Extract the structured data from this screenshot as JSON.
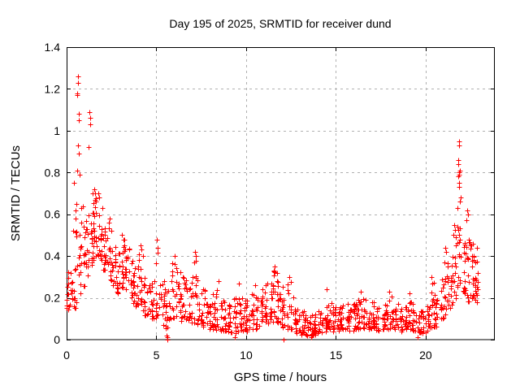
{
  "window": {
    "background": "#ffffff"
  },
  "colors": {
    "marker": "#ff0000",
    "grid": "#b0b0b0",
    "axis": "#000000",
    "text": "#000000",
    "background": "#ffffff"
  },
  "chart_data": {
    "type": "scatter",
    "title": "Day 195 of 2025, SRMTID for receiver dund",
    "xlabel": "GPS time / hours",
    "ylabel": "SRMTID / TECUs",
    "xlim": [
      0,
      23.85
    ],
    "ylim": [
      0,
      1.4
    ],
    "xticks": [
      0,
      5,
      10,
      15,
      20
    ],
    "xtick_labels": [
      "0",
      "5",
      "10",
      "15",
      "20"
    ],
    "yticks": [
      0,
      0.2,
      0.4,
      0.6,
      0.8,
      1.0,
      1.2,
      1.4
    ],
    "ytick_labels": [
      "0",
      "0.2",
      "0.4",
      "0.6",
      "0.8",
      "1",
      "1.2",
      "1.4"
    ],
    "grid": true,
    "legend": "none",
    "marker": "plus",
    "marker_color": "#ff0000",
    "series_name": "SRMTID",
    "description": "Dense 30s-cadence scatter: morning spike to ~1.27 TECU near 0.6-1.3 h, elevated 0.3-0.7 until ~3 h, decaying to low daytime plateau ~0.05-0.2 between 8-20 h with small bump ~0.33 near 11.5 h, evening spike to ~0.95 near 21.9 h, data ends ~23.0 h",
    "density_bins": {
      "bin_hours": 0.25,
      "columns": [
        "t_start_hours",
        "count",
        "y_min",
        "y_max"
      ],
      "rows": [
        [
          0.0,
          14,
          0.14,
          0.33
        ],
        [
          0.25,
          14,
          0.15,
          0.36
        ],
        [
          0.5,
          15,
          0.18,
          0.52
        ],
        [
          0.75,
          16,
          0.22,
          0.64
        ],
        [
          1.0,
          16,
          0.3,
          0.6
        ],
        [
          1.25,
          16,
          0.35,
          0.62
        ],
        [
          1.5,
          18,
          0.4,
          0.69
        ],
        [
          1.75,
          18,
          0.38,
          0.66
        ],
        [
          2.0,
          16,
          0.33,
          0.58
        ],
        [
          2.25,
          15,
          0.28,
          0.54
        ],
        [
          2.5,
          15,
          0.26,
          0.48
        ],
        [
          2.75,
          14,
          0.22,
          0.42
        ],
        [
          3.0,
          15,
          0.25,
          0.49
        ],
        [
          3.25,
          15,
          0.24,
          0.46
        ],
        [
          3.5,
          14,
          0.17,
          0.38
        ],
        [
          3.75,
          14,
          0.15,
          0.36
        ],
        [
          4.0,
          14,
          0.13,
          0.43
        ],
        [
          4.25,
          13,
          0.11,
          0.31
        ],
        [
          4.5,
          13,
          0.1,
          0.28
        ],
        [
          4.75,
          13,
          0.1,
          0.3
        ],
        [
          5.0,
          13,
          0.1,
          0.46
        ],
        [
          5.25,
          12,
          0.07,
          0.28
        ],
        [
          5.5,
          12,
          0.05,
          0.24
        ],
        [
          5.75,
          13,
          0.1,
          0.37
        ],
        [
          6.0,
          14,
          0.1,
          0.37
        ],
        [
          6.25,
          13,
          0.09,
          0.34
        ],
        [
          6.5,
          13,
          0.08,
          0.31
        ],
        [
          6.75,
          13,
          0.08,
          0.3
        ],
        [
          7.0,
          14,
          0.08,
          0.41
        ],
        [
          7.25,
          13,
          0.07,
          0.34
        ],
        [
          7.5,
          13,
          0.06,
          0.28
        ],
        [
          7.75,
          13,
          0.05,
          0.22
        ],
        [
          8.0,
          14,
          0.05,
          0.22
        ],
        [
          8.25,
          13,
          0.04,
          0.26
        ],
        [
          8.5,
          13,
          0.04,
          0.24
        ],
        [
          8.75,
          13,
          0.04,
          0.2
        ],
        [
          9.0,
          13,
          0.03,
          0.18
        ],
        [
          9.25,
          13,
          0.03,
          0.2
        ],
        [
          9.5,
          13,
          0.04,
          0.24
        ],
        [
          9.75,
          13,
          0.04,
          0.2
        ],
        [
          10.0,
          13,
          0.04,
          0.19
        ],
        [
          10.25,
          13,
          0.05,
          0.22
        ],
        [
          10.5,
          13,
          0.05,
          0.23
        ],
        [
          10.75,
          13,
          0.06,
          0.25
        ],
        [
          11.0,
          14,
          0.07,
          0.27
        ],
        [
          11.25,
          14,
          0.08,
          0.3
        ],
        [
          11.5,
          15,
          0.08,
          0.33
        ],
        [
          11.75,
          15,
          0.08,
          0.31
        ],
        [
          12.0,
          14,
          0.06,
          0.28
        ],
        [
          12.25,
          14,
          0.05,
          0.28
        ],
        [
          12.5,
          13,
          0.04,
          0.22
        ],
        [
          12.75,
          13,
          0.03,
          0.16
        ],
        [
          13.0,
          13,
          0.02,
          0.14
        ],
        [
          13.25,
          13,
          0.02,
          0.12
        ],
        [
          13.5,
          14,
          0.02,
          0.12
        ],
        [
          13.75,
          14,
          0.02,
          0.13
        ],
        [
          14.0,
          14,
          0.03,
          0.14
        ],
        [
          14.25,
          13,
          0.04,
          0.18
        ],
        [
          14.5,
          13,
          0.04,
          0.2
        ],
        [
          14.75,
          13,
          0.04,
          0.16
        ],
        [
          15.0,
          13,
          0.04,
          0.16
        ],
        [
          15.25,
          13,
          0.05,
          0.17
        ],
        [
          15.5,
          13,
          0.05,
          0.18
        ],
        [
          15.75,
          13,
          0.04,
          0.17
        ],
        [
          16.0,
          13,
          0.05,
          0.18
        ],
        [
          16.25,
          13,
          0.05,
          0.21
        ],
        [
          16.5,
          13,
          0.05,
          0.2
        ],
        [
          16.75,
          13,
          0.05,
          0.17
        ],
        [
          17.0,
          13,
          0.05,
          0.19
        ],
        [
          17.25,
          13,
          0.04,
          0.17
        ],
        [
          17.5,
          13,
          0.05,
          0.16
        ],
        [
          17.75,
          13,
          0.05,
          0.2
        ],
        [
          18.0,
          13,
          0.05,
          0.21
        ],
        [
          18.25,
          13,
          0.05,
          0.18
        ],
        [
          18.5,
          13,
          0.04,
          0.17
        ],
        [
          18.75,
          13,
          0.05,
          0.18
        ],
        [
          19.0,
          13,
          0.05,
          0.21
        ],
        [
          19.25,
          13,
          0.04,
          0.19
        ],
        [
          19.5,
          13,
          0.03,
          0.15
        ],
        [
          19.75,
          13,
          0.03,
          0.14
        ],
        [
          20.0,
          13,
          0.04,
          0.16
        ],
        [
          20.25,
          13,
          0.06,
          0.28
        ],
        [
          20.5,
          13,
          0.06,
          0.24
        ],
        [
          20.75,
          13,
          0.08,
          0.3
        ],
        [
          21.0,
          14,
          0.12,
          0.42
        ],
        [
          21.25,
          14,
          0.15,
          0.46
        ],
        [
          21.5,
          15,
          0.2,
          0.56
        ],
        [
          21.75,
          16,
          0.25,
          0.63
        ],
        [
          22.0,
          15,
          0.22,
          0.58
        ],
        [
          22.25,
          15,
          0.18,
          0.52
        ],
        [
          22.5,
          16,
          0.2,
          0.47
        ],
        [
          22.75,
          14,
          0.18,
          0.44
        ]
      ]
    },
    "points_explicit": [
      [
        0.58,
        1.18
      ],
      [
        0.6,
        1.17
      ],
      [
        0.63,
        1.26
      ],
      [
        0.64,
        1.23
      ],
      [
        0.68,
        1.05
      ],
      [
        0.7,
        1.08
      ],
      [
        1.28,
        1.09
      ],
      [
        1.3,
        1.06
      ],
      [
        1.31,
        1.03
      ],
      [
        0.63,
        0.93
      ],
      [
        0.67,
        0.89
      ],
      [
        1.22,
        0.92
      ],
      [
        0.6,
        0.81
      ],
      [
        0.73,
        0.79
      ],
      [
        0.41,
        0.75
      ],
      [
        0.55,
        0.65
      ],
      [
        0.5,
        0.62
      ],
      [
        0.52,
        0.58
      ],
      [
        0.35,
        0.52
      ],
      [
        1.45,
        0.7
      ],
      [
        1.55,
        0.72
      ],
      [
        1.6,
        0.7
      ],
      [
        1.78,
        0.7
      ],
      [
        1.8,
        0.68
      ],
      [
        2.35,
        0.56
      ],
      [
        2.4,
        0.58
      ],
      [
        3.1,
        0.5
      ],
      [
        3.15,
        0.48
      ],
      [
        4.1,
        0.45
      ],
      [
        4.15,
        0.43
      ],
      [
        5.02,
        0.48
      ],
      [
        5.05,
        0.44
      ],
      [
        6.0,
        0.4
      ],
      [
        7.15,
        0.42
      ],
      [
        7.2,
        0.4
      ],
      [
        8.45,
        0.28
      ],
      [
        9.6,
        0.27
      ],
      [
        10.5,
        0.26
      ],
      [
        11.55,
        0.33
      ],
      [
        11.6,
        0.35
      ],
      [
        11.7,
        0.32
      ],
      [
        12.4,
        0.3
      ],
      [
        14.5,
        0.24
      ],
      [
        16.4,
        0.23
      ],
      [
        17.95,
        0.23
      ],
      [
        19.1,
        0.22
      ],
      [
        20.3,
        0.3
      ],
      [
        20.35,
        0.27
      ],
      [
        21.1,
        0.44
      ],
      [
        21.15,
        0.42
      ],
      [
        21.85,
        0.95
      ],
      [
        21.88,
        0.93
      ],
      [
        21.8,
        0.86
      ],
      [
        21.83,
        0.84
      ],
      [
        21.85,
        0.8
      ],
      [
        21.87,
        0.79
      ],
      [
        21.9,
        0.81
      ],
      [
        21.82,
        0.78
      ],
      [
        21.86,
        0.75
      ],
      [
        21.84,
        0.73
      ],
      [
        21.95,
        0.68
      ],
      [
        21.92,
        0.66
      ],
      [
        21.78,
        0.63
      ],
      [
        22.3,
        0.62
      ],
      [
        22.35,
        0.6
      ],
      [
        22.28,
        0.57
      ],
      [
        5.55,
        0.02
      ],
      [
        5.6,
        0.0
      ],
      [
        5.63,
        0.01
      ],
      [
        9.35,
        0.01
      ],
      [
        12.1,
        0.0
      ],
      [
        13.6,
        0.01
      ],
      [
        19.55,
        0.01
      ],
      [
        22.9,
        0.32
      ]
    ]
  }
}
